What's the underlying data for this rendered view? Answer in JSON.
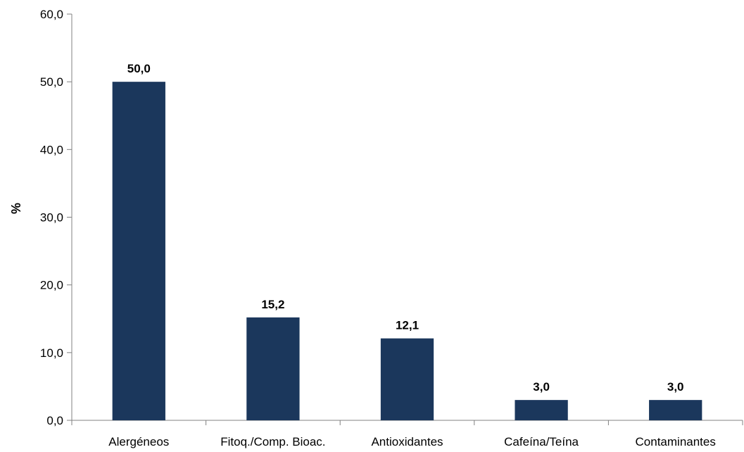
{
  "chart_data": {
    "type": "bar",
    "categories": [
      "Alergéneos",
      "Fitoq./Comp. Bioac.",
      "Antioxidantes",
      "Cafeína/Teína",
      "Contaminantes"
    ],
    "values": [
      50.0,
      15.2,
      12.1,
      3.0,
      3.0
    ],
    "data_labels": [
      "50,0",
      "15,2",
      "12,1",
      "3,0",
      "3,0"
    ],
    "title": "",
    "xlabel": "",
    "ylabel": "%",
    "ylim": [
      0,
      60
    ],
    "yticks": [
      0,
      10,
      20,
      30,
      40,
      50,
      60
    ],
    "ytick_labels": [
      "0,0",
      "10,0",
      "20,0",
      "30,0",
      "40,0",
      "50,0",
      "60,0"
    ],
    "grid": false,
    "legend": "none",
    "bar_color": "#1b375c"
  }
}
